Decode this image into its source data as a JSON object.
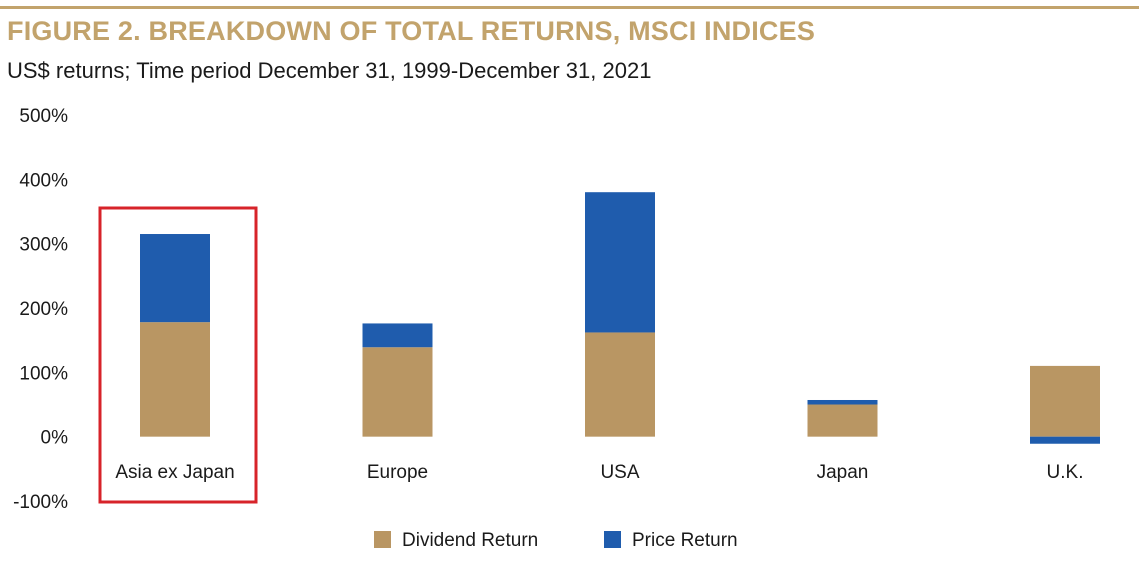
{
  "header": {
    "title": "FIGURE 2.  BREAKDOWN OF TOTAL RETURNS, MSCI INDICES",
    "subtitle": "US$ returns; Time period December 31, 1999-December 31, 2021"
  },
  "colors": {
    "accent": "#c2a36c",
    "dividend": "#b99663",
    "price": "#1f5cad",
    "highlight_box": "#d7232a"
  },
  "chart_data": {
    "type": "bar",
    "stacked": true,
    "categories": [
      "Asia ex Japan",
      "Europe",
      "USA",
      "Japan",
      "U.K."
    ],
    "series": [
      {
        "name": "Dividend Return",
        "color": "#b99663",
        "values": [
          178,
          139,
          162,
          50,
          110
        ]
      },
      {
        "name": "Price Return",
        "color": "#1f5cad",
        "values": [
          137,
          37,
          218,
          7,
          -11
        ]
      }
    ],
    "ylim": [
      -100,
      500
    ],
    "yticks": [
      -100,
      0,
      100,
      200,
      300,
      400,
      500
    ],
    "ytick_labels": [
      "-100%",
      "0%",
      "100%",
      "200%",
      "300%",
      "400%",
      "500%"
    ],
    "grid": false,
    "legend_position": "bottom",
    "highlighted_category": "Asia ex Japan"
  }
}
